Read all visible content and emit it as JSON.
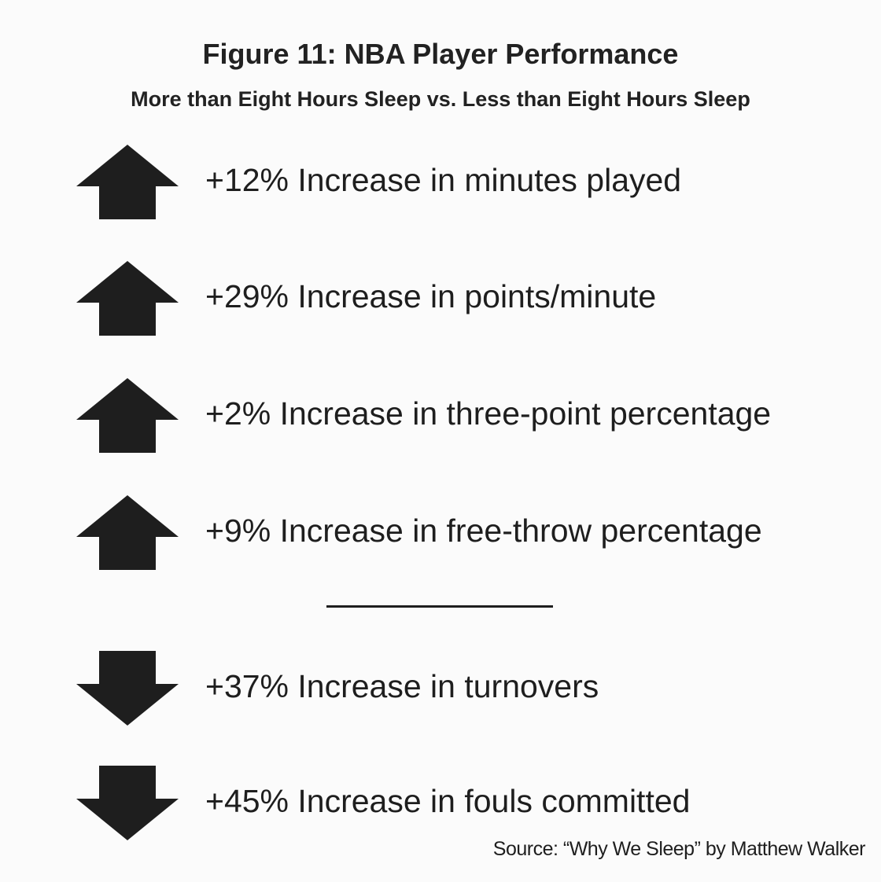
{
  "figure": {
    "title": "Figure 11: NBA Player Performance",
    "subtitle": "More than Eight Hours Sleep vs. Less than Eight Hours Sleep"
  },
  "increases": [
    {
      "direction": "up",
      "icon": "arrow-up-icon",
      "value": 12,
      "text": "+12% Increase in minutes played"
    },
    {
      "direction": "up",
      "icon": "arrow-up-icon",
      "value": 29,
      "text": "+29% Increase in points/minute"
    },
    {
      "direction": "up",
      "icon": "arrow-up-icon",
      "value": 2,
      "text": "+2% Increase in three-point percentage"
    },
    {
      "direction": "up",
      "icon": "arrow-up-icon",
      "value": 9,
      "text": "+9% Increase in free-throw percentage"
    }
  ],
  "decreases": [
    {
      "direction": "down",
      "icon": "arrow-down-icon",
      "value": 37,
      "text": "+37% Increase in turnovers"
    },
    {
      "direction": "down",
      "icon": "arrow-down-icon",
      "value": 45,
      "text": "+45% Increase in fouls committed"
    }
  ],
  "source": "Source: “Why We Sleep” by Matthew Walker",
  "colors": {
    "background": "#fbfbfb",
    "arrow": "#1e1e1e",
    "text": "#1e1e1e"
  }
}
